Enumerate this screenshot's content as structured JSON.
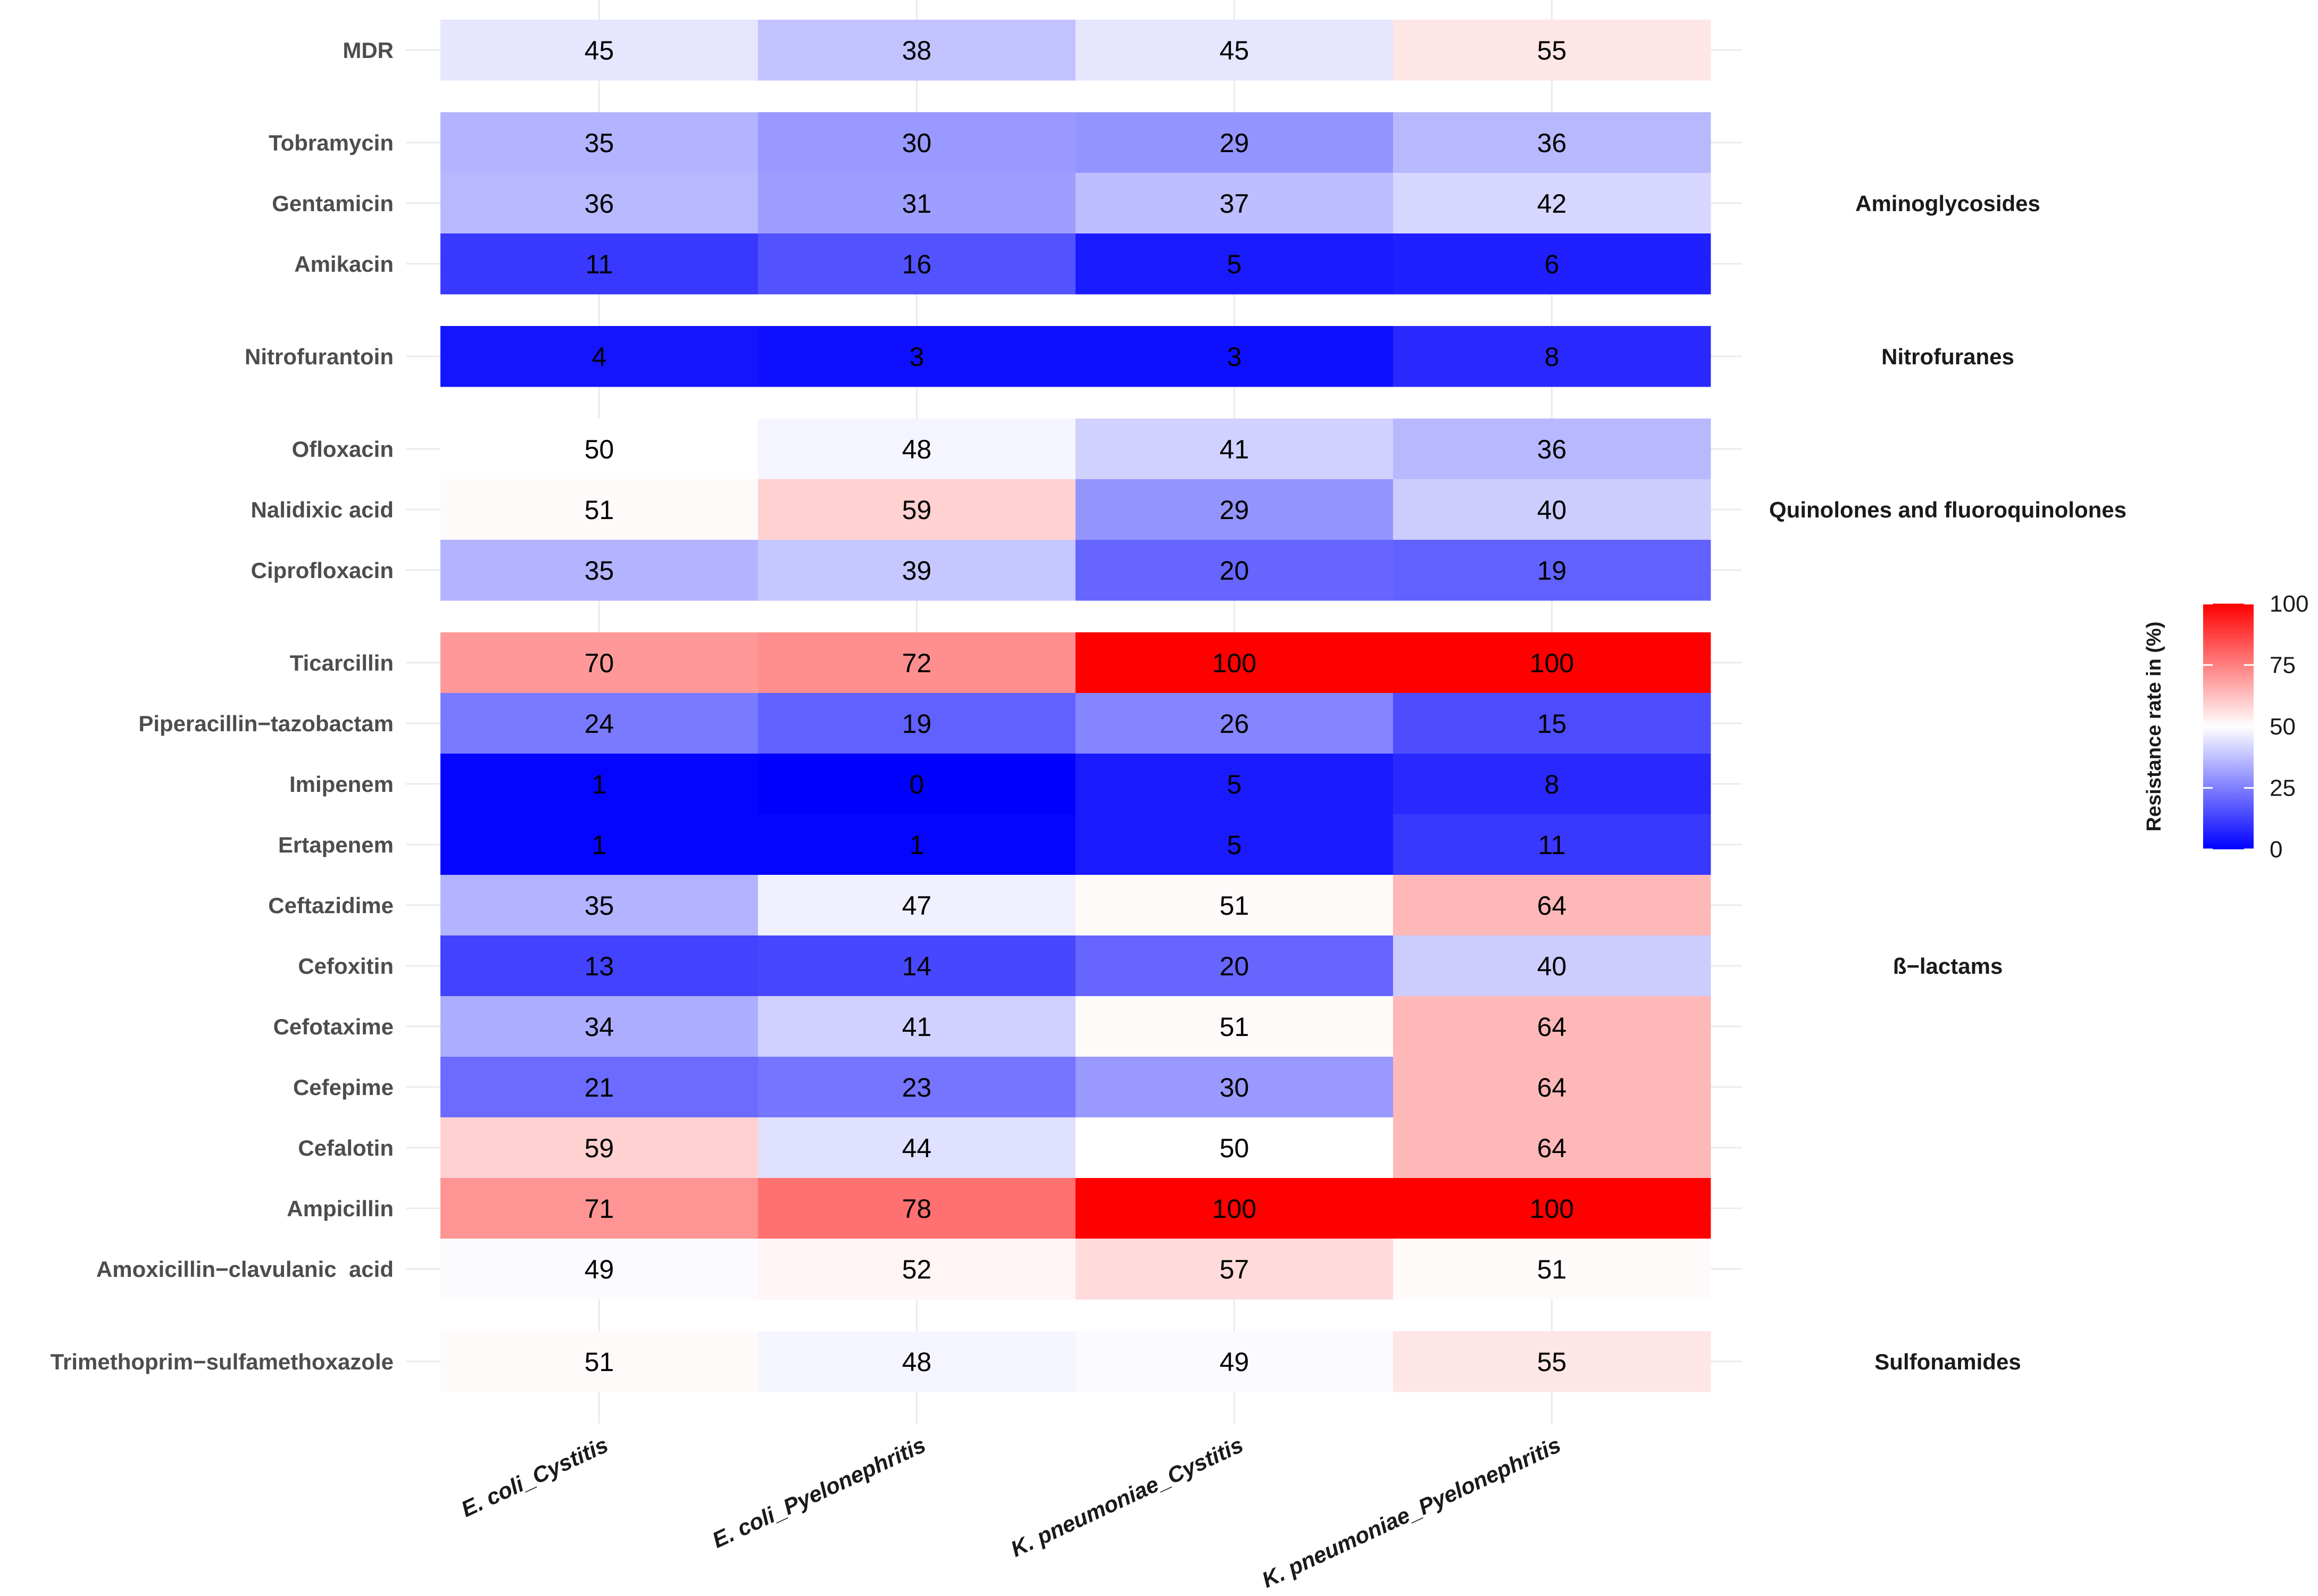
{
  "chart_data": {
    "type": "heatmap",
    "columns": [
      "E. coli_Cystitis",
      "E. coli_Pyelonephritis",
      "K. pneumoniae_Cystitis",
      "K. pneumoniae_Pyelonephritis"
    ],
    "groups": [
      {
        "label": "",
        "rows": [
          {
            "label": "MDR",
            "values": [
              45,
              38,
              45,
              55
            ]
          }
        ]
      },
      {
        "label": "Aminoglycosides",
        "rows": [
          {
            "label": "Tobramycin",
            "values": [
              35,
              30,
              29,
              36
            ]
          },
          {
            "label": "Gentamicin",
            "values": [
              36,
              31,
              37,
              42
            ]
          },
          {
            "label": "Amikacin",
            "values": [
              11,
              16,
              5,
              6
            ]
          }
        ]
      },
      {
        "label": "Nitrofuranes",
        "rows": [
          {
            "label": "Nitrofurantoin",
            "values": [
              4,
              3,
              3,
              8
            ]
          }
        ]
      },
      {
        "label": "Quinolones and fluoroquinolones",
        "rows": [
          {
            "label": "Ofloxacin",
            "values": [
              50,
              48,
              41,
              36
            ]
          },
          {
            "label": "Nalidixic acid",
            "values": [
              51,
              59,
              29,
              40
            ]
          },
          {
            "label": "Ciprofloxacin",
            "values": [
              35,
              39,
              20,
              19
            ]
          }
        ]
      },
      {
        "label": "ß−lactams",
        "rows": [
          {
            "label": "Ticarcillin",
            "values": [
              70,
              72,
              100,
              100
            ]
          },
          {
            "label": "Piperacillin−tazobactam",
            "values": [
              24,
              19,
              26,
              15
            ]
          },
          {
            "label": "Imipenem",
            "values": [
              1,
              0,
              5,
              8
            ]
          },
          {
            "label": "Ertapenem",
            "values": [
              1,
              1,
              5,
              11
            ]
          },
          {
            "label": "Ceftazidime",
            "values": [
              35,
              47,
              51,
              64
            ]
          },
          {
            "label": "Cefoxitin",
            "values": [
              13,
              14,
              20,
              40
            ]
          },
          {
            "label": "Cefotaxime",
            "values": [
              34,
              41,
              51,
              64
            ]
          },
          {
            "label": "Cefepime",
            "values": [
              21,
              23,
              30,
              64
            ]
          },
          {
            "label": "Cefalotin",
            "values": [
              59,
              44,
              50,
              64
            ]
          },
          {
            "label": "Ampicillin",
            "values": [
              71,
              78,
              100,
              100
            ]
          },
          {
            "label": "Amoxicillin−clavulanic  acid",
            "values": [
              49,
              52,
              57,
              51
            ]
          }
        ]
      },
      {
        "label": "Sulfonamides",
        "rows": [
          {
            "label": "Trimethoprim−sulfamethoxazole",
            "values": [
              51,
              48,
              49,
              55
            ]
          }
        ]
      }
    ],
    "color_scale": {
      "title": "Resistance rate in (%)",
      "low": "#0000ff",
      "mid": "#ffffff",
      "high": "#ff0000",
      "midpoint": 50,
      "limits": [
        0,
        100
      ],
      "ticks": [
        0,
        25,
        50,
        75,
        100
      ]
    }
  }
}
